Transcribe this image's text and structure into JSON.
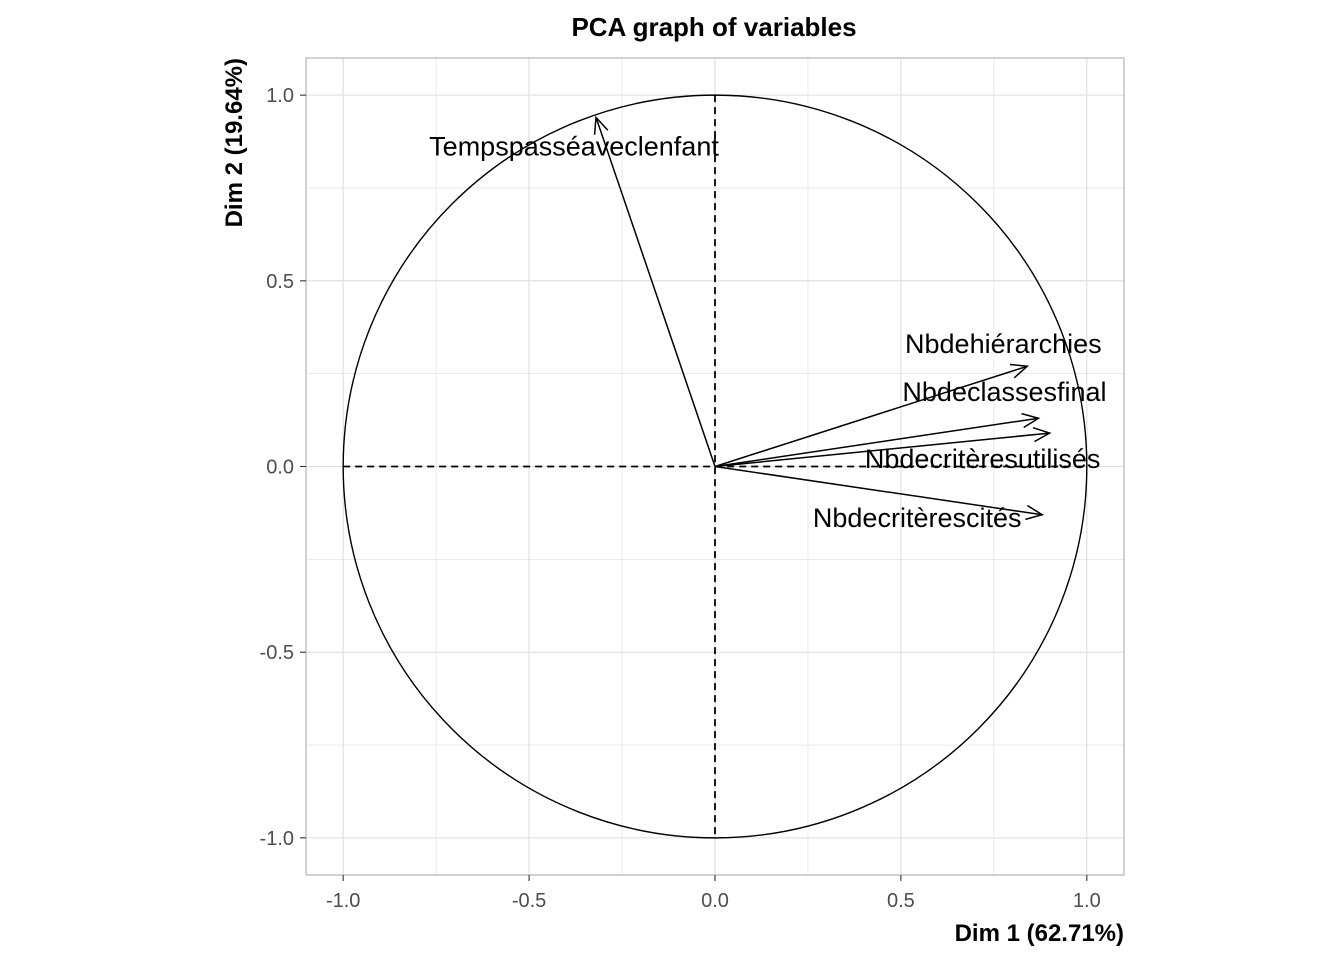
{
  "chart_data": {
    "type": "scatter",
    "subtype": "pca-variable-correlation-circle",
    "title": "PCA graph of variables",
    "xlabel": "Dim 1 (62.71%)",
    "ylabel": "Dim 2 (19.64%)",
    "xlim": [
      -1.1,
      1.1
    ],
    "ylim": [
      -1.1,
      1.1
    ],
    "x_ticks": [
      -1.0,
      -0.5,
      0.0,
      0.5,
      1.0
    ],
    "y_ticks": [
      -1.0,
      -0.5,
      0.0,
      0.5,
      1.0
    ],
    "x_tick_labels": [
      "-1.0",
      "-0.5",
      "0.0",
      "0.5",
      "1.0"
    ],
    "y_tick_labels": [
      "-1.0",
      "-0.5",
      "0.0",
      "0.5",
      "1.0"
    ],
    "grid": true,
    "unit_circle": true,
    "variables": [
      {
        "name": "Tempspasséaveclenfant",
        "x": -0.32,
        "y": 0.94
      },
      {
        "name": "Nbdehiérarchies",
        "x": 0.84,
        "y": 0.27
      },
      {
        "name": "Nbdeclassesfinal",
        "x": 0.87,
        "y": 0.13
      },
      {
        "name": "Nbdecritèresutilisés",
        "x": 0.9,
        "y": 0.09
      },
      {
        "name": "Nbdecritèrescités",
        "x": 0.88,
        "y": -0.13
      }
    ],
    "colors": {
      "arrows": "#000000",
      "grid": "#dedede",
      "panel_border": "#b3b3b3",
      "tick_text": "#4d4d4d"
    }
  }
}
